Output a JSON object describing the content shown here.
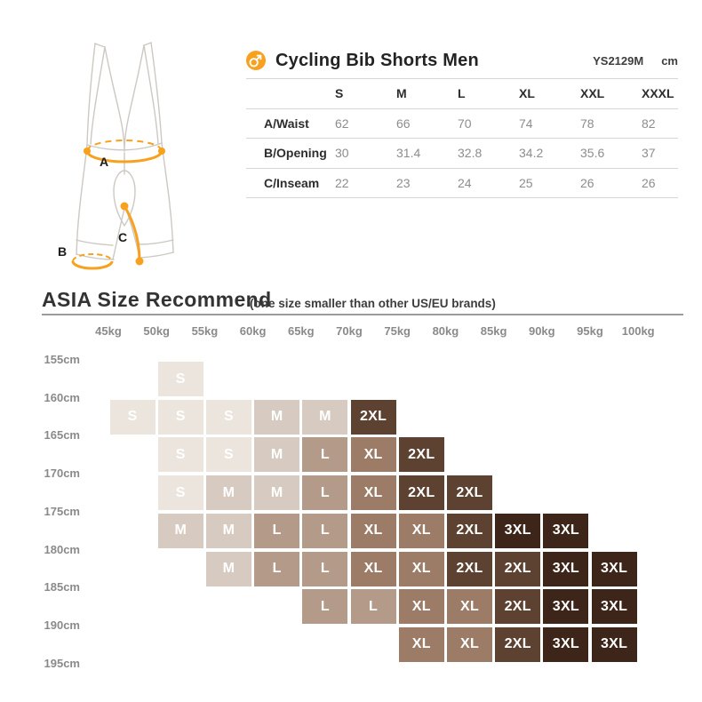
{
  "accent": {
    "orange": "#F7A11E",
    "table_line": "#d8d6d4",
    "divider": "#9a9a9a"
  },
  "size_table": {
    "title": "Cycling Bib Shorts Men",
    "model_code": "YS2129M",
    "unit": "cm",
    "columns": [
      "S",
      "M",
      "L",
      "XL",
      "XXL",
      "XXXL"
    ],
    "rows": [
      {
        "label": "A/Waist",
        "values": [
          "62",
          "66",
          "70",
          "74",
          "78",
          "82"
        ]
      },
      {
        "label": "B/Opening",
        "values": [
          "30",
          "31.4",
          "32.8",
          "34.2",
          "35.6",
          "37"
        ]
      },
      {
        "label": "C/Inseam",
        "values": [
          "22",
          "23",
          "24",
          "25",
          "26",
          "26"
        ]
      }
    ]
  },
  "diagram": {
    "labels": {
      "a": "A",
      "b": "B",
      "c": "C"
    }
  },
  "recommend": {
    "title": "ASIA Size Recommend",
    "note": "(one size smaller than other US/EU brands)",
    "weight_labels": [
      "45kg",
      "50kg",
      "55kg",
      "60kg",
      "65kg",
      "70kg",
      "75kg",
      "80kg",
      "85kg",
      "90kg",
      "95kg",
      "100kg"
    ],
    "height_labels": [
      "155cm",
      "160cm",
      "165cm",
      "170cm",
      "175cm",
      "180cm",
      "185cm",
      "190cm",
      "195cm"
    ],
    "size_colors": {
      "S": "#ECE5DE",
      "M": "#D7CBC1",
      "L": "#B49A89",
      "XL": "#9C7B67",
      "2XL": "#5E4231",
      "3XL": "#3E2519"
    },
    "grid": [
      [
        null,
        "S",
        null,
        null,
        null,
        null,
        null,
        null,
        null,
        null,
        null
      ],
      [
        "S",
        "S",
        "S",
        "M",
        "M",
        "2XL",
        null,
        null,
        null,
        null,
        null
      ],
      [
        null,
        "S",
        "S",
        "M",
        "L",
        "XL",
        "2XL",
        null,
        null,
        null,
        null
      ],
      [
        null,
        "S",
        "M",
        "M",
        "L",
        "XL",
        "2XL",
        "2XL",
        null,
        null,
        null
      ],
      [
        null,
        "M",
        "M",
        "L",
        "L",
        "XL",
        "XL",
        "2XL",
        "3XL",
        "3XL",
        null
      ],
      [
        null,
        null,
        "M",
        "L",
        "L",
        "XL",
        "XL",
        "2XL",
        "2XL",
        "3XL",
        "3XL"
      ],
      [
        null,
        null,
        null,
        null,
        "L",
        "L",
        "XL",
        "XL",
        "2XL",
        "3XL",
        "3XL"
      ],
      [
        null,
        null,
        null,
        null,
        null,
        null,
        "XL",
        "XL",
        "2XL",
        "3XL",
        "3XL"
      ]
    ]
  },
  "chart_data": [
    {
      "type": "table",
      "title": "Cycling Bib Shorts Men",
      "model": "YS2129M",
      "unit": "cm",
      "columns": [
        "S",
        "M",
        "L",
        "XL",
        "XXL",
        "XXXL"
      ],
      "rows": [
        {
          "label": "A/Waist",
          "values": [
            62,
            66,
            70,
            74,
            78,
            82
          ]
        },
        {
          "label": "B/Opening",
          "values": [
            30,
            31.4,
            32.8,
            34.2,
            35.6,
            37
          ]
        },
        {
          "label": "C/Inseam",
          "values": [
            22,
            23,
            24,
            25,
            26,
            26
          ]
        }
      ]
    },
    {
      "type": "heatmap",
      "title": "ASIA Size Recommend",
      "annotation": "(one size smaller than other US/EU brands)",
      "x_axis": {
        "label": "weight",
        "ticks": [
          "45kg",
          "50kg",
          "55kg",
          "60kg",
          "65kg",
          "70kg",
          "75kg",
          "80kg",
          "85kg",
          "90kg",
          "95kg",
          "100kg"
        ]
      },
      "y_axis": {
        "label": "height",
        "ticks": [
          "155cm",
          "160cm",
          "165cm",
          "170cm",
          "175cm",
          "180cm",
          "185cm",
          "190cm",
          "195cm"
        ]
      },
      "layout_note": "each cell spans the range between consecutive weight ticks (columns) and height ticks (rows); empty entries are blank",
      "grid": [
        [
          null,
          "S",
          null,
          null,
          null,
          null,
          null,
          null,
          null,
          null,
          null
        ],
        [
          "S",
          "S",
          "S",
          "M",
          "M",
          "2XL",
          null,
          null,
          null,
          null,
          null
        ],
        [
          null,
          "S",
          "S",
          "M",
          "L",
          "XL",
          "2XL",
          null,
          null,
          null,
          null
        ],
        [
          null,
          "S",
          "M",
          "M",
          "L",
          "XL",
          "2XL",
          "2XL",
          null,
          null,
          null
        ],
        [
          null,
          "M",
          "M",
          "L",
          "L",
          "XL",
          "XL",
          "2XL",
          "3XL",
          "3XL",
          null
        ],
        [
          null,
          null,
          "M",
          "L",
          "L",
          "XL",
          "XL",
          "2XL",
          "2XL",
          "3XL",
          "3XL"
        ],
        [
          null,
          null,
          null,
          null,
          "L",
          "L",
          "XL",
          "XL",
          "2XL",
          "3XL",
          "3XL"
        ],
        [
          null,
          null,
          null,
          null,
          null,
          null,
          "XL",
          "XL",
          "2XL",
          "3XL",
          "3XL"
        ]
      ],
      "legend_colors": {
        "S": "#ECE5DE",
        "M": "#D7CBC1",
        "L": "#B49A89",
        "XL": "#9C7B67",
        "2XL": "#5E4231",
        "3XL": "#3E2519"
      }
    }
  ]
}
